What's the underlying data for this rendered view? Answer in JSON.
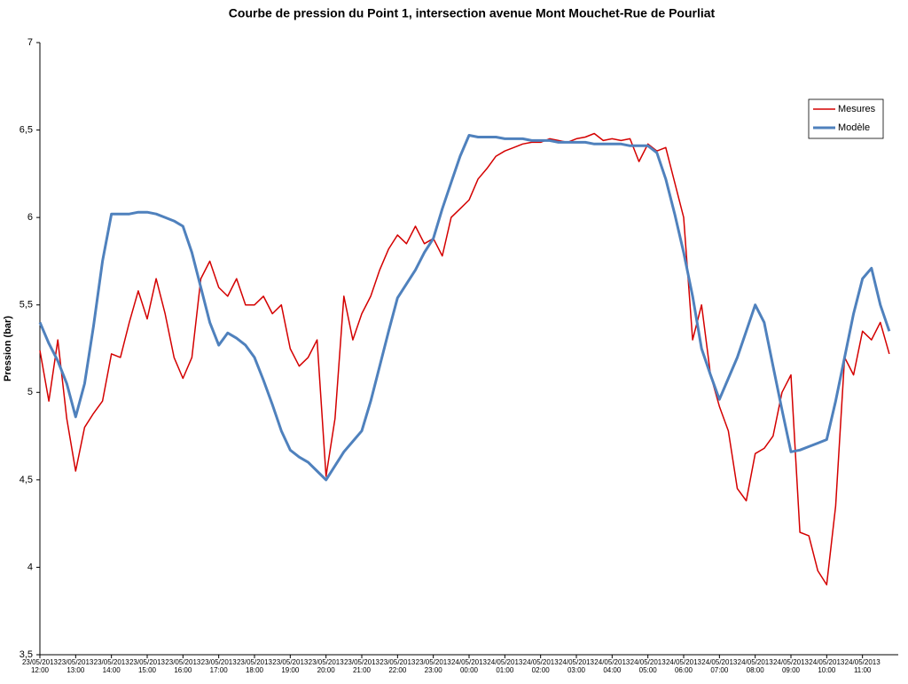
{
  "chart_data": {
    "type": "line",
    "title": "Courbe de pression du Point 1, intersection avenue Mont Mouchet-Rue de Pourliat",
    "y_label": "Pression (bar)",
    "x": [
      "23/05/2013 12:00",
      "23/05/2013 12:15",
      "23/05/2013 12:30",
      "23/05/2013 12:45",
      "23/05/2013 13:00",
      "23/05/2013 13:15",
      "23/05/2013 13:30",
      "23/05/2013 13:45",
      "23/05/2013 14:00",
      "23/05/2013 14:15",
      "23/05/2013 14:30",
      "23/05/2013 14:45",
      "23/05/2013 15:00",
      "23/05/2013 15:15",
      "23/05/2013 15:30",
      "23/05/2013 15:45",
      "23/05/2013 16:00",
      "23/05/2013 16:15",
      "23/05/2013 16:30",
      "23/05/2013 16:45",
      "23/05/2013 17:00",
      "23/05/2013 17:15",
      "23/05/2013 17:30",
      "23/05/2013 17:45",
      "23/05/2013 18:00",
      "23/05/2013 18:15",
      "23/05/2013 18:30",
      "23/05/2013 18:45",
      "23/05/2013 19:00",
      "23/05/2013 19:15",
      "23/05/2013 19:30",
      "23/05/2013 19:45",
      "23/05/2013 20:00",
      "23/05/2013 20:15",
      "23/05/2013 20:30",
      "23/05/2013 20:45",
      "23/05/2013 21:00",
      "23/05/2013 21:15",
      "23/05/2013 21:30",
      "23/05/2013 21:45",
      "23/05/2013 22:00",
      "23/05/2013 22:15",
      "23/05/2013 22:30",
      "23/05/2013 22:45",
      "23/05/2013 23:00",
      "23/05/2013 23:15",
      "23/05/2013 23:30",
      "23/05/2013 23:45",
      "24/05/2013 00:00",
      "24/05/2013 00:15",
      "24/05/2013 00:30",
      "24/05/2013 00:45",
      "24/05/2013 01:00",
      "24/05/2013 01:15",
      "24/05/2013 01:30",
      "24/05/2013 01:45",
      "24/05/2013 02:00",
      "24/05/2013 02:15",
      "24/05/2013 02:30",
      "24/05/2013 02:45",
      "24/05/2013 03:00",
      "24/05/2013 03:15",
      "24/05/2013 03:30",
      "24/05/2013 03:45",
      "24/05/2013 04:00",
      "24/05/2013 04:15",
      "24/05/2013 04:30",
      "24/05/2013 04:45",
      "24/05/2013 05:00",
      "24/05/2013 05:15",
      "24/05/2013 05:30",
      "24/05/2013 05:45",
      "24/05/2013 06:00",
      "24/05/2013 06:15",
      "24/05/2013 06:30",
      "24/05/2013 06:45",
      "24/05/2013 07:00",
      "24/05/2013 07:15",
      "24/05/2013 07:30",
      "24/05/2013 07:45",
      "24/05/2013 08:00",
      "24/05/2013 08:15",
      "24/05/2013 08:30",
      "24/05/2013 08:45",
      "24/05/2013 09:00",
      "24/05/2013 09:15",
      "24/05/2013 09:30",
      "24/05/2013 09:45",
      "24/05/2013 10:00",
      "24/05/2013 10:15",
      "24/05/2013 10:30",
      "24/05/2013 10:45",
      "24/05/2013 11:00",
      "24/05/2013 11:15",
      "24/05/2013 11:30",
      "24/05/2013 11:45"
    ],
    "series": [
      {
        "name": "Mesures",
        "color": "#d40000",
        "width": 1.5,
        "values": [
          5.24,
          4.95,
          5.3,
          4.85,
          4.55,
          4.8,
          4.88,
          4.95,
          5.22,
          5.2,
          5.4,
          5.58,
          5.42,
          5.65,
          5.45,
          5.2,
          5.08,
          5.2,
          5.65,
          5.75,
          5.6,
          5.55,
          5.65,
          5.5,
          5.5,
          5.55,
          5.45,
          5.5,
          5.25,
          5.15,
          5.2,
          5.3,
          4.52,
          4.85,
          5.55,
          5.3,
          5.45,
          5.55,
          5.7,
          5.82,
          5.9,
          5.85,
          5.95,
          5.85,
          5.88,
          5.78,
          6.0,
          6.05,
          6.1,
          6.22,
          6.28,
          6.35,
          6.38,
          6.4,
          6.42,
          6.43,
          6.43,
          6.45,
          6.44,
          6.43,
          6.45,
          6.46,
          6.48,
          6.44,
          6.45,
          6.44,
          6.45,
          6.32,
          6.42,
          6.38,
          6.4,
          6.2,
          6.0,
          5.3,
          5.5,
          5.1,
          4.92,
          4.78,
          4.45,
          4.38,
          4.65,
          4.68,
          4.75,
          5.0,
          5.1,
          4.2,
          4.18,
          3.98,
          3.9,
          4.35,
          5.2,
          5.1,
          5.35,
          5.3,
          5.4,
          5.22
        ]
      },
      {
        "name": "Modèle",
        "color": "#4f81bd",
        "width": 3,
        "values": [
          5.4,
          5.28,
          5.18,
          5.05,
          4.86,
          5.05,
          5.38,
          5.75,
          6.02,
          6.02,
          6.02,
          6.03,
          6.03,
          6.02,
          6.0,
          5.98,
          5.95,
          5.8,
          5.6,
          5.4,
          5.27,
          5.34,
          5.31,
          5.27,
          5.2,
          5.07,
          4.93,
          4.78,
          4.67,
          4.63,
          4.6,
          4.55,
          4.5,
          4.58,
          4.66,
          4.72,
          4.78,
          4.95,
          5.15,
          5.35,
          5.54,
          5.62,
          5.7,
          5.8,
          5.88,
          6.05,
          6.2,
          6.35,
          6.47,
          6.46,
          6.46,
          6.46,
          6.45,
          6.45,
          6.45,
          6.44,
          6.44,
          6.44,
          6.43,
          6.43,
          6.43,
          6.43,
          6.42,
          6.42,
          6.42,
          6.42,
          6.41,
          6.41,
          6.41,
          6.37,
          6.22,
          6.02,
          5.8,
          5.55,
          5.25,
          5.1,
          4.96,
          5.08,
          5.2,
          5.35,
          5.5,
          5.4,
          5.15,
          4.9,
          4.66,
          4.67,
          4.69,
          4.71,
          4.73,
          4.95,
          5.2,
          5.45,
          5.65,
          5.71,
          5.5,
          5.35
        ]
      }
    ],
    "xlim": [
      "23/05/2013 12:00",
      "24/05/2013 12:00"
    ],
    "xticks": [
      "23/05/2013 12:00",
      "23/05/2013 13:00",
      "23/05/2013 14:00",
      "23/05/2013 15:00",
      "23/05/2013 16:00",
      "23/05/2013 17:00",
      "23/05/2013 18:00",
      "23/05/2013 19:00",
      "23/05/2013 20:00",
      "23/05/2013 21:00",
      "23/05/2013 22:00",
      "23/05/2013 23:00",
      "24/05/2013 00:00",
      "24/05/2013 01:00",
      "24/05/2013 02:00",
      "24/05/2013 03:00",
      "24/05/2013 04:00",
      "24/05/2013 05:00",
      "24/05/2013 06:00",
      "24/05/2013 07:00",
      "24/05/2013 08:00",
      "24/05/2013 09:00",
      "24/05/2013 10:00",
      "24/05/2013 11:00"
    ],
    "ylim": [
      3.5,
      7
    ],
    "yticks": [
      {
        "value": 3.5,
        "label": "3,5"
      },
      4,
      {
        "value": 4.5,
        "label": "4,5"
      },
      5,
      {
        "value": 5.5,
        "label": "5,5"
      },
      6,
      {
        "value": 6.5,
        "label": "6,5"
      },
      7
    ],
    "grid": false,
    "legend": "top-right"
  }
}
